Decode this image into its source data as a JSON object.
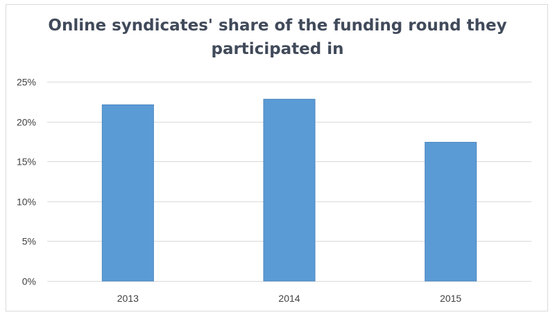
{
  "chart_data": {
    "type": "bar",
    "title": "Online syndicates' share of the funding round they participated in",
    "title_lines": [
      "Online syndicates' share of the funding round they",
      "participated in"
    ],
    "categories": [
      "2013",
      "2014",
      "2015"
    ],
    "values": [
      22.1,
      22.8,
      17.4
    ],
    "value_unit": "%",
    "xlabel": "",
    "ylabel": "",
    "ylim": [
      0,
      25
    ],
    "yticks": [
      0,
      5,
      10,
      15,
      20,
      25
    ],
    "ytick_labels": [
      "0%",
      "5%",
      "10%",
      "15%",
      "20%",
      "25%"
    ],
    "grid": true,
    "legend": "none",
    "bar_color": "#5b9bd5",
    "grid_color": "#d9d9d9"
  }
}
